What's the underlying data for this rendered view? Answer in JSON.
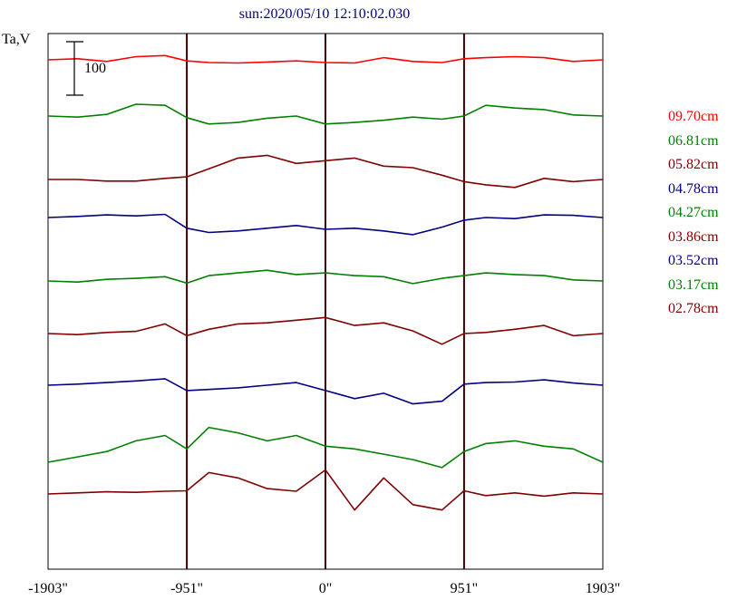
{
  "chart_data": {
    "type": "line",
    "title": "sun:2020/05/10 12:10:02.030",
    "ylabel": "Ta,V",
    "scale_bar_label": "100",
    "scale_bar_value": 100,
    "x_ticks": [
      "-1903\"",
      "-951\"",
      "0\"",
      "951\"",
      "1903\""
    ],
    "x_tick_values": [
      -1903,
      -951,
      0,
      951,
      1903
    ],
    "xlim": [
      -1903,
      1903
    ],
    "x_axis_unit": "arcsec",
    "limb_markers": [
      -951,
      0,
      951
    ],
    "grid": false,
    "legend_position": "right",
    "series": [
      {
        "name": "09.70cm",
        "color": "#ff0000",
        "offset": 0,
        "x": [
          -1903,
          -1700,
          -1500,
          -1300,
          -1100,
          -951,
          -800,
          -600,
          -400,
          -200,
          0,
          200,
          400,
          600,
          800,
          951,
          1100,
          1300,
          1500,
          1700,
          1903
        ],
        "y": [
          0,
          2,
          -3,
          6,
          8,
          -2,
          -5,
          -6,
          -4,
          -2,
          -5,
          -6,
          4,
          -3,
          -5,
          2,
          4,
          6,
          4,
          -3,
          0
        ]
      },
      {
        "name": "06.81cm",
        "color": "#008000",
        "offset": 0,
        "x": [
          -1903,
          -1700,
          -1500,
          -1300,
          -1100,
          -951,
          -800,
          -600,
          -400,
          -200,
          0,
          200,
          400,
          600,
          800,
          951,
          1100,
          1300,
          1500,
          1700,
          1903
        ],
        "y": [
          0,
          -2,
          3,
          22,
          20,
          -3,
          -15,
          -12,
          -4,
          0,
          -15,
          -12,
          -8,
          -2,
          -6,
          0,
          20,
          15,
          12,
          2,
          0
        ]
      },
      {
        "name": "05.82cm",
        "color": "#800000",
        "offset": 0,
        "x": [
          -1903,
          -1700,
          -1500,
          -1300,
          -1100,
          -951,
          -800,
          -600,
          -400,
          -200,
          0,
          200,
          400,
          600,
          800,
          951,
          1100,
          1300,
          1500,
          1700,
          1903
        ],
        "y": [
          0,
          0,
          -3,
          -3,
          2,
          5,
          20,
          40,
          45,
          30,
          35,
          40,
          25,
          22,
          8,
          -4,
          -10,
          -15,
          2,
          -4,
          0
        ]
      },
      {
        "name": "04.78cm",
        "color": "#000080",
        "offset": 0,
        "x": [
          -1903,
          -1700,
          -1500,
          -1300,
          -1100,
          -951,
          -800,
          -600,
          -400,
          -200,
          0,
          200,
          400,
          600,
          800,
          951,
          1100,
          1300,
          1500,
          1700,
          1903
        ],
        "y": [
          0,
          2,
          5,
          3,
          6,
          -20,
          -28,
          -25,
          -20,
          -15,
          -22,
          -20,
          -25,
          -32,
          -18,
          -5,
          0,
          -2,
          5,
          4,
          0
        ]
      },
      {
        "name": "04.27cm",
        "color": "#008000",
        "offset": 0,
        "x": [
          -1903,
          -1700,
          -1500,
          -1300,
          -1100,
          -951,
          -800,
          -600,
          -400,
          -200,
          0,
          200,
          400,
          600,
          800,
          951,
          1100,
          1300,
          1500,
          1700,
          1903
        ],
        "y": [
          0,
          -2,
          3,
          5,
          8,
          -4,
          10,
          15,
          20,
          12,
          15,
          10,
          8,
          -5,
          5,
          10,
          15,
          12,
          10,
          2,
          0
        ]
      },
      {
        "name": "03.86cm",
        "color": "#800000",
        "offset": 0,
        "x": [
          -1903,
          -1700,
          -1500,
          -1300,
          -1100,
          -951,
          -800,
          -600,
          -400,
          -200,
          0,
          200,
          400,
          600,
          800,
          951,
          1100,
          1300,
          1500,
          1700,
          1903
        ],
        "y": [
          0,
          -2,
          2,
          4,
          18,
          -4,
          8,
          18,
          20,
          25,
          30,
          15,
          20,
          5,
          -20,
          0,
          2,
          8,
          15,
          -4,
          0
        ]
      },
      {
        "name": "03.52cm",
        "color": "#000080",
        "offset": 0,
        "x": [
          -1903,
          -1700,
          -1500,
          -1300,
          -1100,
          -951,
          -800,
          -600,
          -400,
          -200,
          0,
          200,
          400,
          600,
          800,
          951,
          1100,
          1300,
          1500,
          1700,
          1903
        ],
        "y": [
          0,
          2,
          5,
          8,
          12,
          -10,
          -8,
          -5,
          0,
          5,
          -10,
          -25,
          -15,
          -35,
          -30,
          2,
          5,
          6,
          10,
          4,
          0
        ]
      },
      {
        "name": "03.17cm",
        "color": "#008000",
        "offset": 0,
        "x": [
          -1903,
          -1700,
          -1500,
          -1300,
          -1100,
          -951,
          -800,
          -600,
          -400,
          -200,
          0,
          200,
          400,
          600,
          800,
          951,
          1100,
          1300,
          1500,
          1700,
          1903
        ],
        "y": [
          0,
          10,
          20,
          40,
          50,
          25,
          65,
          55,
          40,
          50,
          30,
          25,
          15,
          5,
          -10,
          20,
          35,
          40,
          30,
          25,
          0
        ]
      },
      {
        "name": "02.78cm",
        "color": "#800000",
        "offset": 0,
        "x": [
          -1903,
          -1700,
          -1500,
          -1300,
          -1100,
          -951,
          -800,
          -600,
          -400,
          -200,
          0,
          200,
          400,
          600,
          800,
          951,
          1100,
          1300,
          1500,
          1700,
          1903
        ],
        "y": [
          0,
          2,
          4,
          3,
          5,
          6,
          40,
          30,
          10,
          5,
          45,
          -30,
          30,
          -20,
          -30,
          6,
          -3,
          2,
          -4,
          2,
          0
        ]
      }
    ]
  }
}
